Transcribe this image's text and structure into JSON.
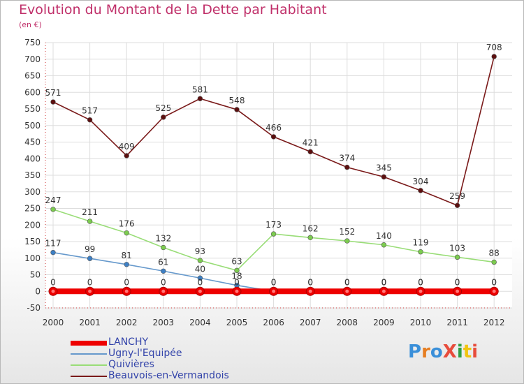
{
  "title": "Evolution du Montant de la Dette par Habitant",
  "subtitle": "(en €)",
  "logo": {
    "text": "ProXiti",
    "colors": [
      "#3a8fd9",
      "#e67e22",
      "#3a8fd9",
      "#e74c3c",
      "#2e9e44",
      "#f1c40f",
      "#e74c3c"
    ]
  },
  "chart_data": {
    "type": "line",
    "x": [
      "2000",
      "2001",
      "2002",
      "2003",
      "2004",
      "2005",
      "2006",
      "2007",
      "2008",
      "2009",
      "2010",
      "2011",
      "2012"
    ],
    "ylim": [
      -50,
      750
    ],
    "yticks": [
      -50,
      0,
      50,
      100,
      150,
      200,
      250,
      300,
      350,
      400,
      450,
      500,
      550,
      600,
      650,
      700,
      750
    ],
    "grid": true,
    "legend_position": "bottom-left",
    "series": [
      {
        "name": "Beauvois-en-Vermandois",
        "color": "#7a1a1a",
        "marker": "#5c0f0f",
        "values": [
          571,
          517,
          409,
          525,
          581,
          548,
          466,
          421,
          374,
          345,
          304,
          259,
          708
        ]
      },
      {
        "name": "Quivières",
        "color": "#99dd77",
        "marker": "#7ccc4f",
        "values": [
          247,
          211,
          176,
          132,
          93,
          63,
          173,
          162,
          152,
          140,
          119,
          103,
          88
        ]
      },
      {
        "name": "Ugny-l'Equipée",
        "color": "#6699cc",
        "marker": "#3d7fc4",
        "values": [
          117,
          99,
          81,
          61,
          40,
          18,
          0,
          0,
          0,
          0,
          0,
          0,
          0
        ]
      },
      {
        "name": "LANCHY",
        "color": "#ee0000",
        "marker": "#ee0000",
        "values": [
          0,
          0,
          0,
          0,
          0,
          0,
          0,
          0,
          0,
          0,
          0,
          0,
          0
        ]
      }
    ]
  },
  "legend": [
    {
      "label": "LANCHY",
      "color": "#ee0000",
      "thickness": 7
    },
    {
      "label": "Ugny-l'Equipée",
      "color": "#6699cc",
      "thickness": 2
    },
    {
      "label": "Quivières",
      "color": "#99dd77",
      "thickness": 2
    },
    {
      "label": "Beauvois-en-Vermandois",
      "color": "#7a1a1a",
      "thickness": 2
    }
  ]
}
